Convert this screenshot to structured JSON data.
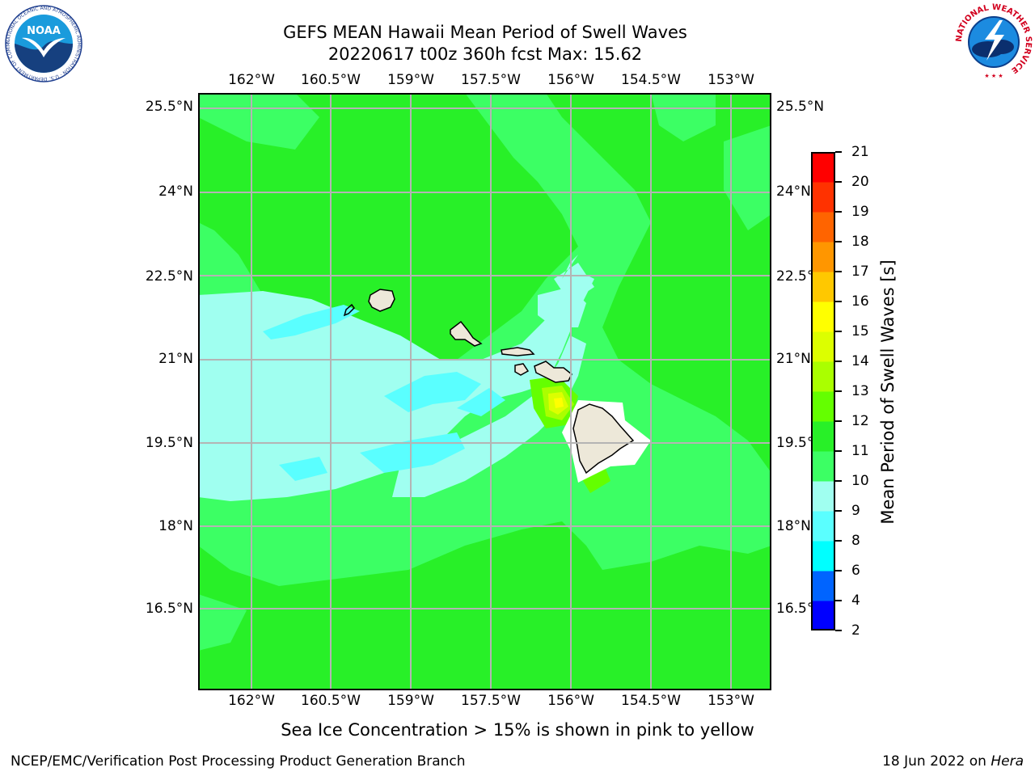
{
  "title": {
    "line1": "GEFS MEAN Hawaii Mean Period of Swell Waves",
    "line2": "20220617 t00z 360h fcst   Max: 15.62"
  },
  "map": {
    "lon_labels": [
      "162°W",
      "160.5°W",
      "159°W",
      "157.5°W",
      "156°W",
      "154.5°W",
      "153°W"
    ],
    "lat_labels": [
      "25.5°N",
      "24°N",
      "22.5°N",
      "21°N",
      "19.5°N",
      "18°N",
      "16.5°N"
    ],
    "lon_range": [
      -163,
      -152.25
    ],
    "lat_range": [
      15,
      25.75
    ],
    "islands": [
      "Niihau",
      "Kauai",
      "Oahu",
      "Molokai",
      "Lanai",
      "Maui",
      "Hawaii"
    ],
    "field_name": "Mean Period of Swell Waves",
    "field_max": 15.62
  },
  "colorbar": {
    "title": "Mean Period of Swell Waves [s]",
    "levels": [
      2,
      4,
      6,
      8,
      9,
      10,
      11,
      12,
      13,
      14,
      15,
      16,
      17,
      18,
      19,
      20,
      21
    ],
    "colors": [
      "#0000ff",
      "#0064ff",
      "#00ffff",
      "#5affff",
      "#a0fff0",
      "#3cff64",
      "#28f028",
      "#64ff00",
      "#aaff00",
      "#dcff00",
      "#ffff00",
      "#ffc800",
      "#ff9600",
      "#ff6400",
      "#ff3200",
      "#ff0000"
    ]
  },
  "footnote": "Sea Ice Concentration > 15% is shown in pink to yellow",
  "credit": "NCEP/EMC/Verification Post Processing Product Generation Branch",
  "date": {
    "text": "18 Jun 2022 on ",
    "machine": "Hera"
  },
  "logos": {
    "noaa": {
      "name": "NOAA",
      "ring_text": "NATIONAL OCEANIC AND ATMOSPHERIC ADMINISTRATION · U.S. DEPARTMENT OF COMMERCE"
    },
    "nws": {
      "ring_text": "NATIONAL WEATHER SERVICE"
    }
  }
}
